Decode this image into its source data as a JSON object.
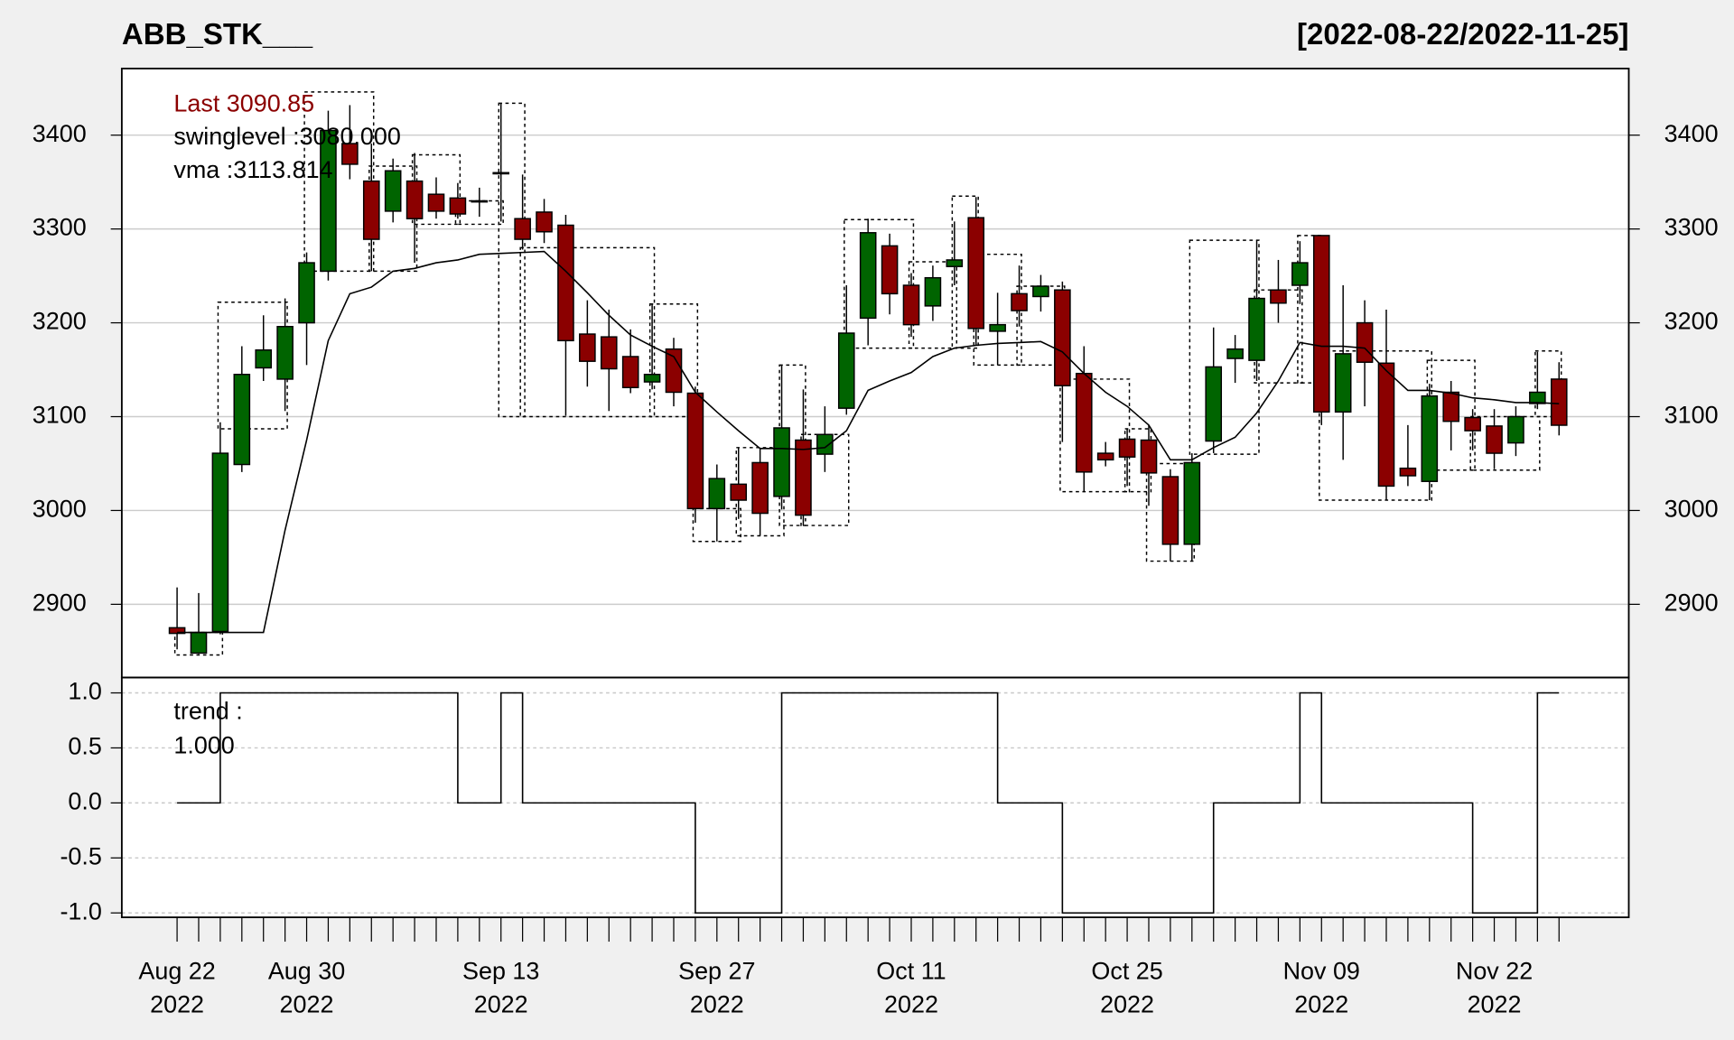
{
  "chart_data": [
    {
      "type": "candlestick",
      "title": "ABB_STK___",
      "date_range": "[2022-08-22/2022-11-25]",
      "annotations": [
        "Last 3090.85",
        "swinglevel :3080.000",
        "vma :3113.814"
      ],
      "annotation_colors": [
        "#8b0000",
        "#000000",
        "#000000"
      ],
      "categories": [
        "Aug 22\n2022",
        null,
        null,
        null,
        null,
        null,
        "Aug 30\n2022",
        null,
        null,
        null,
        null,
        null,
        null,
        null,
        null,
        "Sep 13\n2022",
        null,
        null,
        null,
        null,
        null,
        null,
        null,
        null,
        null,
        "Sep 27\n2022",
        null,
        null,
        null,
        null,
        null,
        null,
        null,
        null,
        "Oct 11\n2022",
        null,
        null,
        null,
        null,
        null,
        null,
        null,
        null,
        null,
        "Oct 25\n2022",
        null,
        null,
        null,
        null,
        null,
        null,
        null,
        null,
        "Nov 09\n2022",
        null,
        null,
        null,
        null,
        null,
        null,
        null,
        "Nov 22\n2022",
        null,
        null,
        null
      ],
      "open": [
        2875,
        2848,
        2871,
        3049,
        3152,
        3140,
        3200,
        3255,
        3391,
        3351,
        3319,
        3351,
        3337,
        3333,
        3330,
        3359,
        3311,
        3318,
        3304,
        3188,
        3185,
        3164,
        3137,
        3172,
        3125,
        3002,
        3028,
        3051,
        3015,
        3075,
        3060,
        3109,
        3205,
        3282,
        3240,
        3218,
        3260,
        3312,
        3191,
        3231,
        3228,
        3235,
        3146,
        3061,
        3076,
        3075,
        3036,
        2964,
        3074,
        3162,
        3160,
        3235,
        3240,
        3293,
        3105,
        3200,
        3157,
        3045,
        3031,
        3126,
        3099,
        3090,
        3072,
        3114,
        3140
      ],
      "high": [
        2918,
        2912,
        3094,
        3175,
        3208,
        3226,
        3275,
        3426,
        3432,
        3391,
        3375,
        3381,
        3355,
        3349,
        3344,
        3434,
        3358,
        3332,
        3315,
        3224,
        3214,
        3193,
        3220,
        3184,
        3132,
        3049,
        3067,
        3067,
        3155,
        3129,
        3111,
        3240,
        3311,
        3295,
        3253,
        3261,
        3308,
        3334,
        3232,
        3261,
        3251,
        3244,
        3175,
        3073,
        3087,
        3091,
        3044,
        3061,
        3195,
        3187,
        3288,
        3267,
        3287,
        3293,
        3240,
        3224,
        3214,
        3091,
        3135,
        3138,
        3108,
        3108,
        3111,
        3169,
        3158
      ],
      "low": [
        2852,
        2847,
        2868,
        3041,
        3138,
        3106,
        3155,
        3245,
        3353,
        3255,
        3307,
        3264,
        3311,
        3311,
        3313,
        3308,
        3278,
        3285,
        3101,
        3132,
        3106,
        3125,
        3129,
        3111,
        2987,
        2967,
        2991,
        2973,
        3001,
        2984,
        3041,
        3102,
        3176,
        3209,
        3185,
        3202,
        3240,
        3176,
        3155,
        3196,
        3212,
        3073,
        3020,
        3047,
        3026,
        3005,
        2946,
        2946,
        3061,
        3136,
        3138,
        3200,
        3220,
        3091,
        3054,
        3111,
        3011,
        3026,
        3011,
        3064,
        3064,
        3044,
        3058,
        3108,
        3080
      ],
      "close": [
        2869,
        2870,
        3061,
        3145,
        3171,
        3196,
        3264,
        3405,
        3369,
        3289,
        3362,
        3311,
        3319,
        3316,
        3329,
        3360,
        3289,
        3297,
        3181,
        3159,
        3151,
        3131,
        3145,
        3126,
        3002,
        3034,
        3011,
        2997,
        3088,
        2995,
        3081,
        3189,
        3296,
        3231,
        3198,
        3248,
        3267,
        3194,
        3198,
        3213,
        3239,
        3133,
        3041,
        3054,
        3057,
        3040,
        2964,
        3051,
        3153,
        3172,
        3226,
        3221,
        3264,
        3105,
        3167,
        3158,
        3026,
        3037,
        3122,
        3095,
        3085,
        3061,
        3100,
        3126,
        3090.85
      ],
      "up_color": "#006400",
      "down_color": "#8b0000",
      "vma": [
        2870,
        2870,
        2870,
        2870,
        2870,
        2979,
        3075,
        3181,
        3231,
        3238,
        3255,
        3258,
        3264,
        3267,
        3273,
        3274,
        3275,
        3276,
        3255,
        3232,
        3208,
        3187,
        3175,
        3164,
        3126,
        3105,
        3085,
        3066,
        3066,
        3065,
        3067,
        3085,
        3128,
        3138,
        3147,
        3164,
        3173,
        3176,
        3178,
        3179,
        3180,
        3169,
        3146,
        3126,
        3111,
        3091,
        3054,
        3054,
        3067,
        3078,
        3104,
        3138,
        3179,
        3175,
        3175,
        3173,
        3149,
        3128,
        3128,
        3125,
        3120,
        3118,
        3115,
        3115,
        3113.814
      ],
      "swing_boxes": [
        {
          "start": 0,
          "end": 2,
          "low": 2846,
          "high": 2870
        },
        {
          "start": 2,
          "end": 5,
          "low": 3087,
          "high": 3222
        },
        {
          "start": 6,
          "end": 9,
          "low": 3255,
          "high": 3446
        },
        {
          "start": 9,
          "end": 11,
          "low": 3255,
          "high": 3367
        },
        {
          "start": 11,
          "end": 13,
          "low": 3305,
          "high": 3379
        },
        {
          "start": 13,
          "end": 15,
          "low": 3305,
          "high": 3330
        },
        {
          "start": 15,
          "end": 16,
          "low": 3100,
          "high": 3434
        },
        {
          "start": 16,
          "end": 22,
          "low": 3100,
          "high": 3280
        },
        {
          "start": 22,
          "end": 24,
          "low": 3100,
          "high": 3220
        },
        {
          "start": 24,
          "end": 26,
          "low": 2967,
          "high": 3002
        },
        {
          "start": 26,
          "end": 28,
          "low": 2973,
          "high": 3067
        },
        {
          "start": 28,
          "end": 29,
          "low": 2984,
          "high": 3155
        },
        {
          "start": 29,
          "end": 31,
          "low": 2984,
          "high": 3081
        },
        {
          "start": 31,
          "end": 34,
          "low": 3173,
          "high": 3310
        },
        {
          "start": 34,
          "end": 36,
          "low": 3173,
          "high": 3265
        },
        {
          "start": 36,
          "end": 37,
          "low": 3173,
          "high": 3335
        },
        {
          "start": 37,
          "end": 39,
          "low": 3155,
          "high": 3273
        },
        {
          "start": 39,
          "end": 41,
          "low": 3155,
          "high": 3239
        },
        {
          "start": 41,
          "end": 44,
          "low": 3020,
          "high": 3140
        },
        {
          "start": 44,
          "end": 45,
          "low": 3020,
          "high": 3087
        },
        {
          "start": 45,
          "end": 47,
          "low": 2946,
          "high": 3050
        },
        {
          "start": 47,
          "end": 50,
          "low": 3060,
          "high": 3288
        },
        {
          "start": 50,
          "end": 52,
          "low": 3136,
          "high": 3235
        },
        {
          "start": 52,
          "end": 53,
          "low": 3136,
          "high": 3293
        },
        {
          "start": 53,
          "end": 58,
          "low": 3011,
          "high": 3170
        },
        {
          "start": 58,
          "end": 60,
          "low": 3043,
          "high": 3160
        },
        {
          "start": 60,
          "end": 63,
          "low": 3043,
          "high": 3100
        },
        {
          "start": 63,
          "end": 64,
          "low": 3100,
          "high": 3170
        }
      ],
      "ylim": [
        2822,
        3471
      ],
      "yticks": [
        2900,
        3000,
        3100,
        3200,
        3300,
        3400
      ],
      "grid": true
    },
    {
      "type": "line",
      "drawstyle": "steps-post",
      "annotations": [
        "trend :",
        "1.000"
      ],
      "values": [
        0,
        0,
        1,
        1,
        1,
        1,
        1,
        1,
        1,
        1,
        1,
        1,
        1,
        0,
        0,
        1,
        0,
        0,
        0,
        0,
        0,
        0,
        0,
        0,
        -1,
        -1,
        -1,
        -1,
        1,
        1,
        1,
        1,
        1,
        1,
        1,
        1,
        1,
        1,
        0,
        0,
        0,
        -1,
        -1,
        -1,
        -1,
        -1,
        -1,
        -1,
        0,
        0,
        0,
        0,
        1,
        0,
        0,
        0,
        0,
        0,
        0,
        0,
        -1,
        -1,
        -1,
        1,
        1
      ],
      "ylim": [
        -1.04,
        1.14
      ],
      "yticks": [
        {
          "value": 1,
          "label": "1.0"
        },
        0.5,
        {
          "value": 0,
          "label": "0.0"
        },
        -0.5,
        {
          "value": -1,
          "label": "-1.0"
        }
      ],
      "grid": true
    }
  ]
}
